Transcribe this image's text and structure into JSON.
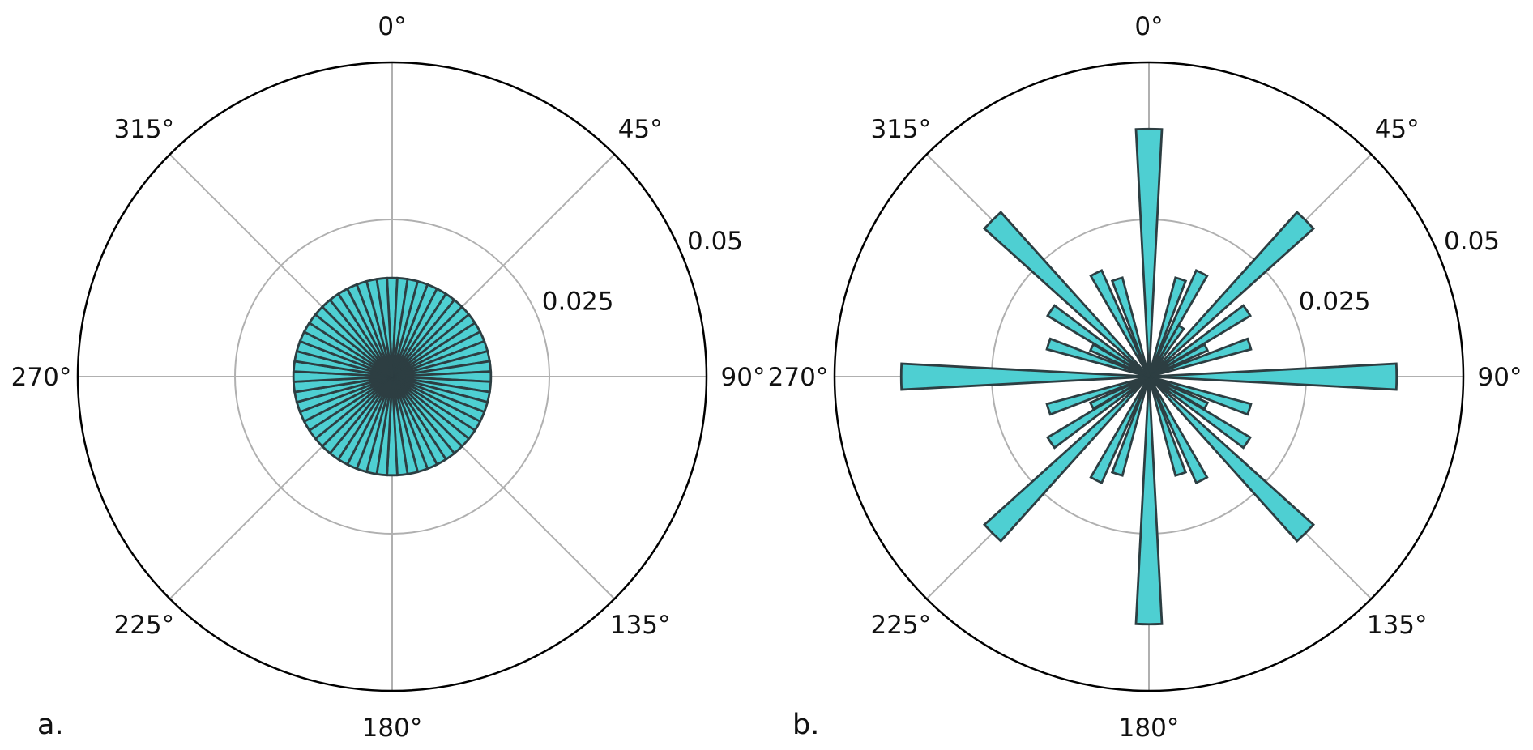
{
  "chart_data": [
    {
      "type": "bar",
      "projection": "polar",
      "panel_label": "a.",
      "angle_tick_labels": [
        "0°",
        "45°",
        "90°",
        "135°",
        "180°",
        "225°",
        "270°",
        "315°"
      ],
      "angle_ticks_deg": [
        0,
        45,
        90,
        135,
        180,
        225,
        270,
        315
      ],
      "radial_tick_labels": [
        "0.025",
        "0.05"
      ],
      "radial_ticks": [
        0.025,
        0.05
      ],
      "rlim": [
        0,
        0.05
      ],
      "grid": true,
      "bar_color": "#4ecfd2",
      "edge_color": "#2d3e42",
      "bin_count": 60,
      "bin_width_deg": 6,
      "uniform_value": 0.0157,
      "theta_deg": [],
      "values": []
    },
    {
      "type": "bar",
      "projection": "polar",
      "panel_label": "b.",
      "angle_tick_labels": [
        "0°",
        "45°",
        "90°",
        "135°",
        "180°",
        "225°",
        "270°",
        "315°"
      ],
      "angle_ticks_deg": [
        0,
        45,
        90,
        135,
        180,
        225,
        270,
        315
      ],
      "radial_tick_labels": [
        "0.025",
        "0.05"
      ],
      "radial_ticks": [
        0.025,
        0.05
      ],
      "rlim": [
        0,
        0.05
      ],
      "grid": true,
      "bar_color": "#4ecfd2",
      "edge_color": "#2d3e42",
      "bin_width_deg": 6,
      "theta_deg": [
        0,
        18,
        27,
        33,
        45,
        56,
        63,
        72,
        90,
        108,
        117,
        124,
        135,
        153,
        162,
        180,
        198,
        207,
        225,
        236,
        243,
        252,
        270,
        288,
        297,
        304,
        315,
        333,
        342
      ],
      "values": [
        0.0394,
        0.0163,
        0.0185,
        0.0094,
        0.0352,
        0.0188,
        0.0102,
        0.0168,
        0.0394,
        0.0168,
        0.0102,
        0.0188,
        0.0352,
        0.0185,
        0.0163,
        0.0394,
        0.0163,
        0.0185,
        0.0352,
        0.0188,
        0.0102,
        0.0168,
        0.0394,
        0.0168,
        0.0102,
        0.0188,
        0.0352,
        0.0185,
        0.0163
      ]
    }
  ]
}
